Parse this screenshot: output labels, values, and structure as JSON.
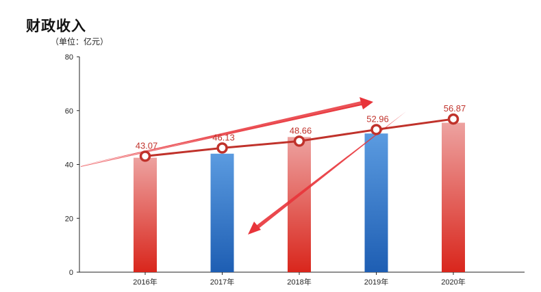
{
  "chart_data": {
    "type": "bar",
    "title": "财政收入",
    "subtitle": "（单位：亿元）",
    "categories": [
      "2016年",
      "2017年",
      "2018年",
      "2019年",
      "2020年"
    ],
    "bar_values": [
      42.5,
      44.0,
      50.2,
      51.5,
      55.5
    ],
    "line_values": [
      43.07,
      46.13,
      48.66,
      52.96,
      56.87
    ],
    "data_labels": [
      "43.07",
      "46.13",
      "48.66",
      "52.96",
      "56.87"
    ],
    "bar_colors": [
      "red",
      "blue",
      "red",
      "blue",
      "red"
    ],
    "ylim": [
      0,
      80
    ],
    "yticks": [
      0,
      20,
      40,
      60,
      80
    ],
    "grid": false,
    "colors": {
      "red_top": "#eda2a0",
      "red_bottom": "#d9261c",
      "blue_top": "#5b9be0",
      "blue_bottom": "#1e5eb3",
      "line": "#c0322b",
      "arrow": "#e8343a",
      "axis": "#222222"
    }
  }
}
